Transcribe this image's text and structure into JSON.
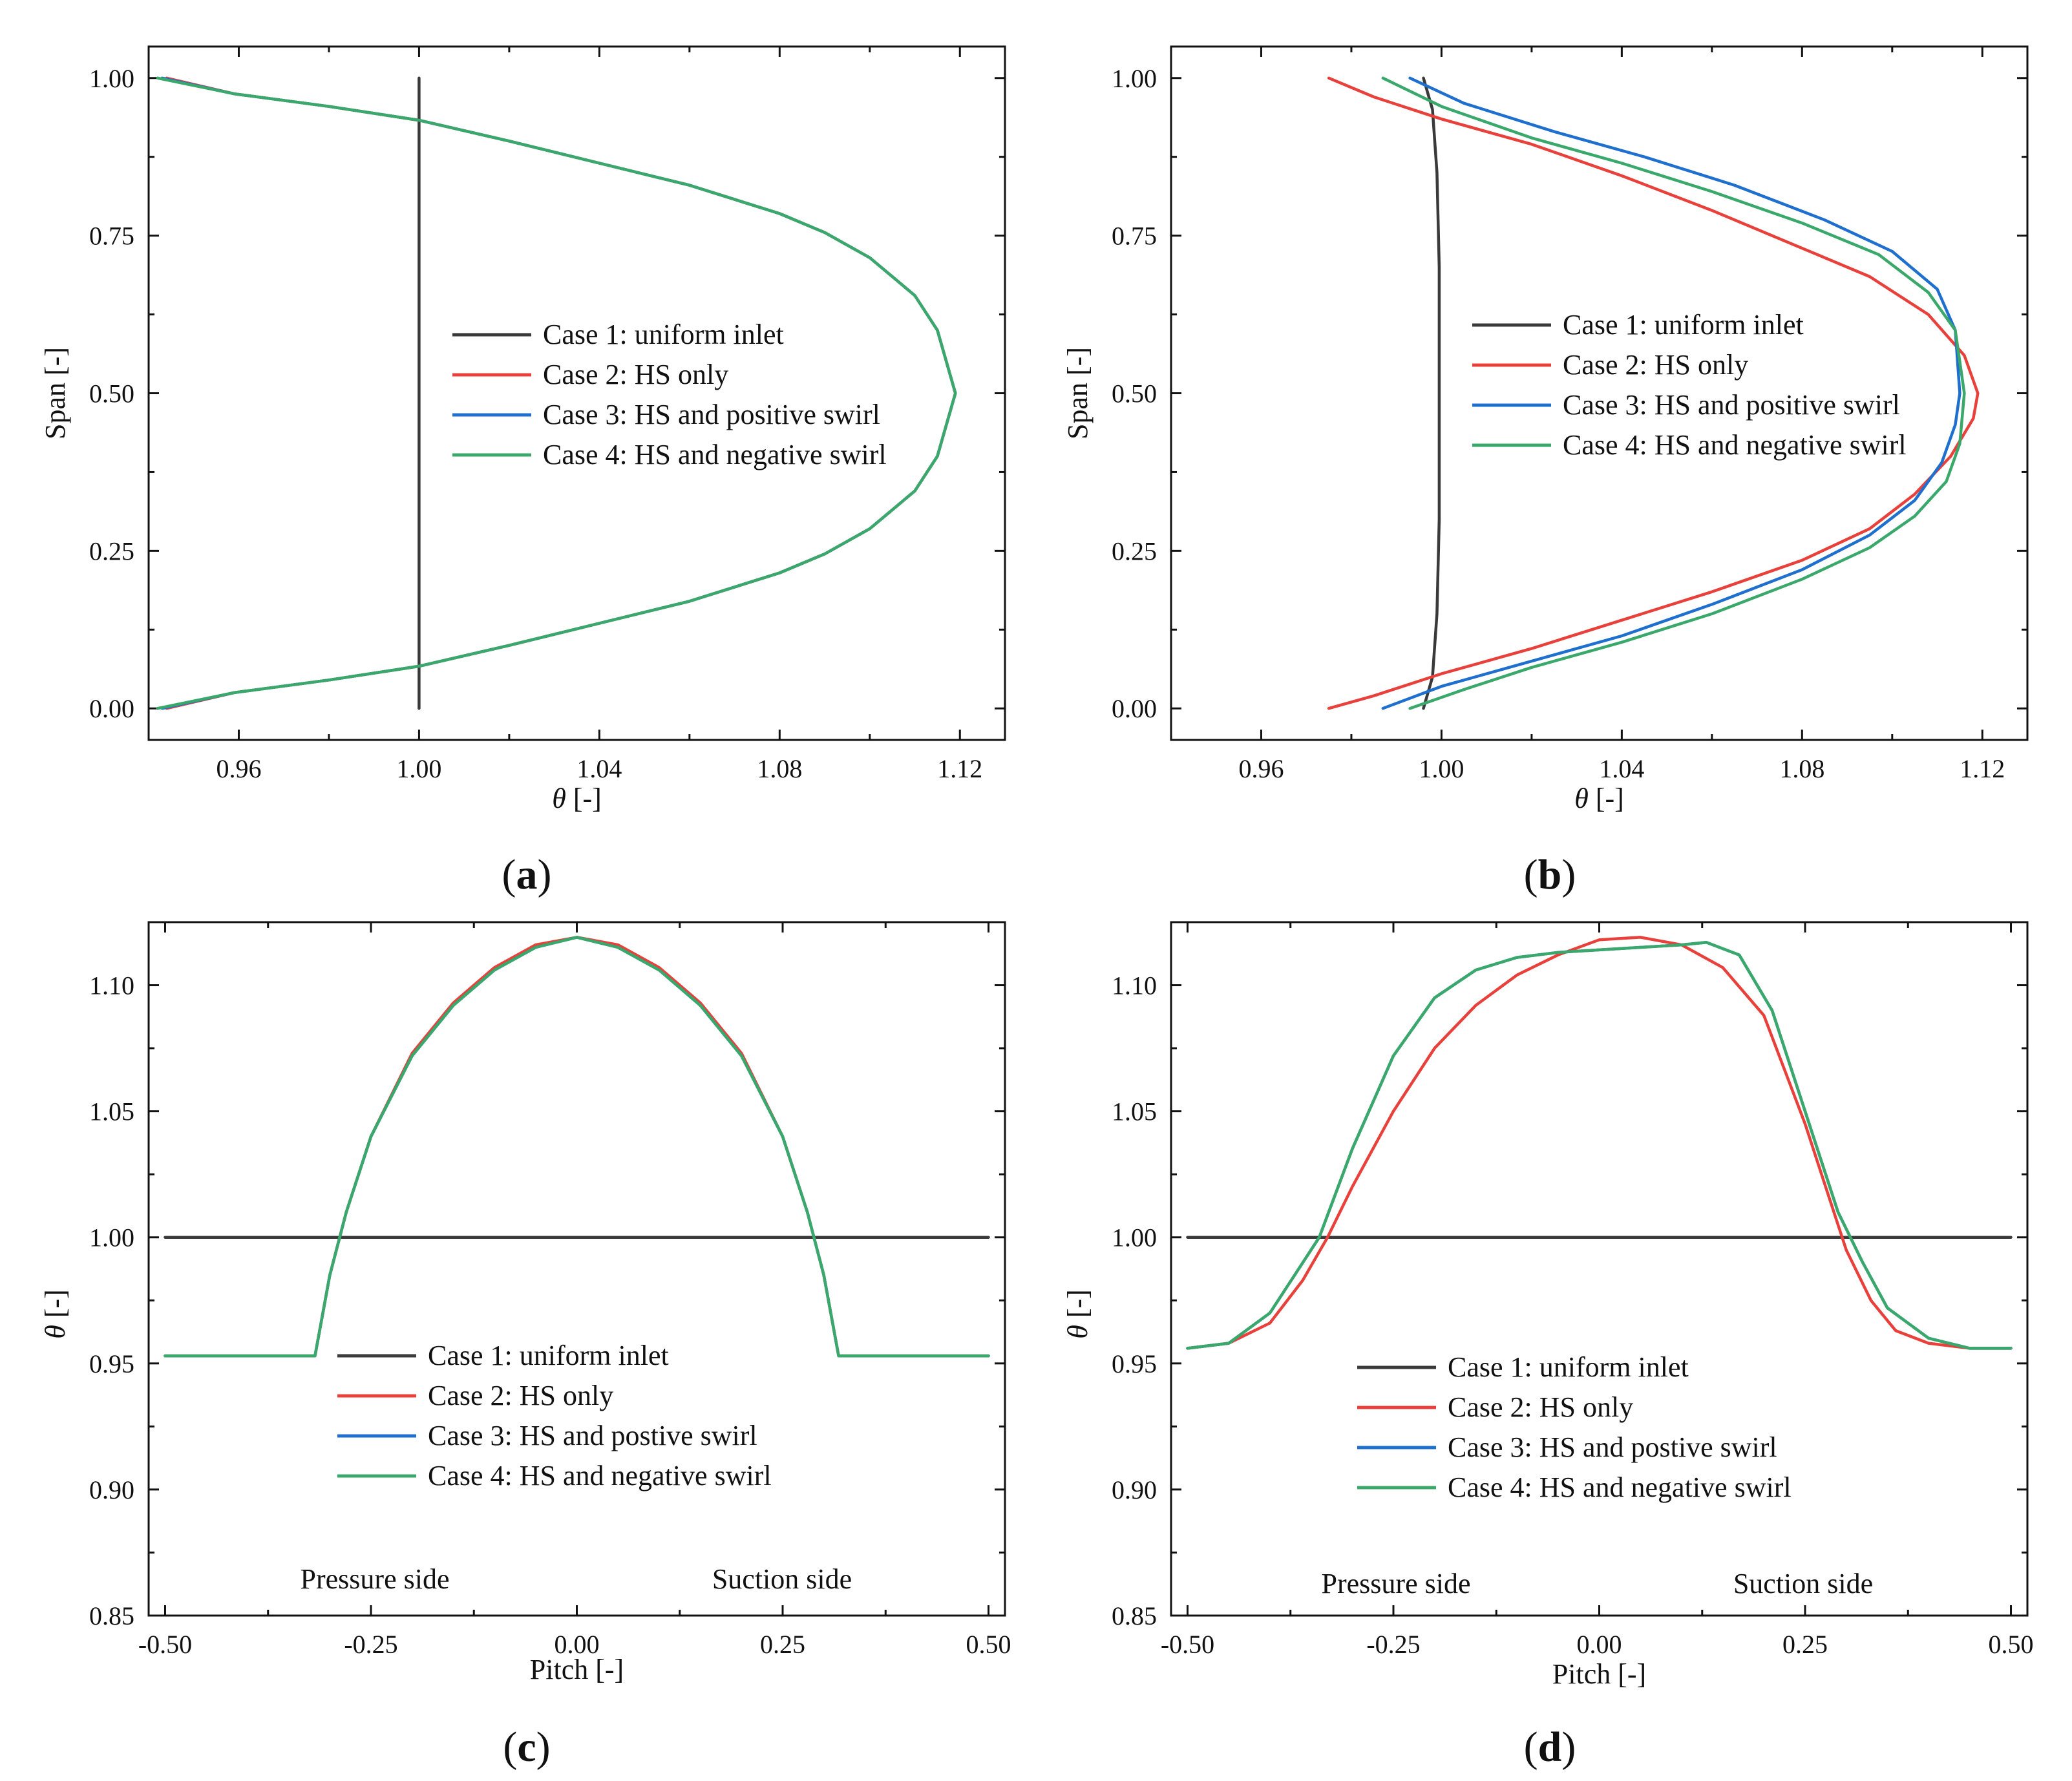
{
  "colors": {
    "case1": "#3a3a3a",
    "case2": "#e8413c",
    "case3": "#1f6fce",
    "case4": "#3aa86b",
    "axis": "#111111"
  },
  "chart_data": [
    {
      "id": "a",
      "label": "a",
      "type": "line",
      "orientation": "vertical",
      "xlabel_symbol": "θ",
      "xlabel_unit": " [-]",
      "ylabel": "Span [-]",
      "xlim": [
        0.94,
        1.13
      ],
      "ylim": [
        -0.05,
        1.05
      ],
      "xticks": [
        0.96,
        1.0,
        1.04,
        1.08,
        1.12
      ],
      "xtick_labels": [
        "0.96",
        "1.00",
        "1.04",
        "1.08",
        "1.12"
      ],
      "yticks": [
        0.0,
        0.25,
        0.5,
        0.75,
        1.0
      ],
      "ytick_labels": [
        "0.00",
        "0.25",
        "0.50",
        "0.75",
        "1.00"
      ],
      "legend": [
        "Case 1: uniform inlet",
        "Case 2: HS only",
        "Case 3: HS and positive swirl",
        "Case 4: HS and negative swirl"
      ],
      "legend_pos": "center-right",
      "annotations": [],
      "series": [
        {
          "name": "Case 1: uniform inlet",
          "color": "case1",
          "x": [
            1.0,
            1.0
          ],
          "y": [
            0.0,
            1.0
          ]
        },
        {
          "name": "Case 2: HS only",
          "color": "case2",
          "x": [
            0.944,
            0.959,
            0.98,
            1.0,
            1.02,
            1.04,
            1.06,
            1.08,
            1.09,
            1.1,
            1.11,
            1.115,
            1.119,
            1.115,
            1.11,
            1.1,
            1.09,
            1.08,
            1.06,
            1.04,
            1.02,
            1.0,
            0.98,
            0.959,
            0.944
          ],
          "y": [
            0.0,
            0.025,
            0.045,
            0.067,
            0.1,
            0.135,
            0.17,
            0.215,
            0.245,
            0.285,
            0.345,
            0.4,
            0.5,
            0.6,
            0.655,
            0.715,
            0.755,
            0.785,
            0.83,
            0.865,
            0.9,
            0.933,
            0.955,
            0.975,
            1.0
          ]
        },
        {
          "name": "Case 3: HS and positive swirl",
          "color": "case3",
          "x": [
            0.943,
            0.959,
            0.98,
            1.0,
            1.02,
            1.04,
            1.06,
            1.08,
            1.09,
            1.1,
            1.11,
            1.115,
            1.119,
            1.115,
            1.11,
            1.1,
            1.09,
            1.08,
            1.06,
            1.04,
            1.02,
            1.0,
            0.98,
            0.959,
            0.943
          ],
          "y": [
            0.0,
            0.025,
            0.045,
            0.067,
            0.1,
            0.135,
            0.17,
            0.215,
            0.245,
            0.285,
            0.345,
            0.4,
            0.5,
            0.6,
            0.655,
            0.715,
            0.755,
            0.785,
            0.83,
            0.865,
            0.9,
            0.933,
            0.955,
            0.975,
            1.0
          ]
        },
        {
          "name": "Case 4: HS and negative swirl",
          "color": "case4",
          "x": [
            0.942,
            0.959,
            0.98,
            1.0,
            1.02,
            1.04,
            1.06,
            1.08,
            1.09,
            1.1,
            1.11,
            1.115,
            1.119,
            1.115,
            1.11,
            1.1,
            1.09,
            1.08,
            1.06,
            1.04,
            1.02,
            1.0,
            0.98,
            0.959,
            0.942
          ],
          "y": [
            0.0,
            0.025,
            0.045,
            0.067,
            0.1,
            0.135,
            0.17,
            0.215,
            0.245,
            0.285,
            0.345,
            0.4,
            0.5,
            0.6,
            0.655,
            0.715,
            0.755,
            0.785,
            0.83,
            0.865,
            0.9,
            0.933,
            0.955,
            0.975,
            1.0
          ]
        }
      ]
    },
    {
      "id": "b",
      "label": "b",
      "type": "line",
      "orientation": "vertical",
      "xlabel_symbol": "θ",
      "xlabel_unit": " [-]",
      "ylabel": "Span [-]",
      "xlim": [
        0.94,
        1.13
      ],
      "ylim": [
        -0.05,
        1.05
      ],
      "xticks": [
        0.96,
        1.0,
        1.04,
        1.08,
        1.12
      ],
      "xtick_labels": [
        "0.96",
        "1.00",
        "1.04",
        "1.08",
        "1.12"
      ],
      "yticks": [
        0.0,
        0.25,
        0.5,
        0.75,
        1.0
      ],
      "ytick_labels": [
        "0.00",
        "0.25",
        "0.50",
        "0.75",
        "1.00"
      ],
      "legend": [
        "Case 1: uniform inlet",
        "Case 2: HS only",
        "Case 3: HS and positive swirl",
        "Case 4: HS and negative swirl"
      ],
      "legend_pos": "center-right",
      "annotations": [],
      "series": [
        {
          "name": "Case 1: uniform inlet",
          "color": "case1",
          "x": [
            0.996,
            0.998,
            0.999,
            0.9995,
            0.9995,
            0.9995,
            0.999,
            0.998,
            0.996
          ],
          "y": [
            0.0,
            0.05,
            0.15,
            0.3,
            0.5,
            0.7,
            0.85,
            0.95,
            1.0
          ]
        },
        {
          "name": "Case 2: HS only",
          "color": "case2",
          "x": [
            0.975,
            0.985,
            1.0,
            1.02,
            1.04,
            1.06,
            1.08,
            1.095,
            1.105,
            1.113,
            1.118,
            1.119,
            1.116,
            1.108,
            1.095,
            1.08,
            1.06,
            1.04,
            1.02,
            1.0,
            0.985,
            0.975
          ],
          "y": [
            0.0,
            0.02,
            0.055,
            0.095,
            0.14,
            0.185,
            0.235,
            0.285,
            0.34,
            0.4,
            0.46,
            0.5,
            0.56,
            0.625,
            0.685,
            0.73,
            0.79,
            0.845,
            0.895,
            0.935,
            0.97,
            1.0
          ]
        },
        {
          "name": "Case 3: HS and positive swirl",
          "color": "case3",
          "x": [
            0.987,
            1.0,
            1.02,
            1.04,
            1.06,
            1.08,
            1.095,
            1.105,
            1.111,
            1.114,
            1.115,
            1.114,
            1.11,
            1.1,
            1.085,
            1.065,
            1.045,
            1.025,
            1.005,
            0.993
          ],
          "y": [
            0.0,
            0.035,
            0.075,
            0.115,
            0.165,
            0.22,
            0.275,
            0.33,
            0.39,
            0.45,
            0.5,
            0.6,
            0.665,
            0.725,
            0.775,
            0.83,
            0.875,
            0.915,
            0.96,
            1.0
          ]
        },
        {
          "name": "Case 4: HS and negative swirl",
          "color": "case4",
          "x": [
            0.993,
            1.005,
            1.02,
            1.04,
            1.06,
            1.08,
            1.095,
            1.105,
            1.112,
            1.115,
            1.116,
            1.114,
            1.108,
            1.097,
            1.08,
            1.06,
            1.04,
            1.02,
            1.0,
            0.987
          ],
          "y": [
            0.0,
            0.03,
            0.065,
            0.105,
            0.15,
            0.205,
            0.255,
            0.305,
            0.36,
            0.42,
            0.5,
            0.6,
            0.66,
            0.72,
            0.77,
            0.82,
            0.865,
            0.905,
            0.955,
            1.0
          ]
        }
      ]
    },
    {
      "id": "c",
      "label": "c",
      "type": "line",
      "orientation": "horizontal",
      "xlabel": "Pitch [-]",
      "ylabel_symbol": "θ",
      "ylabel_unit": " [-]",
      "xlim": [
        -0.52,
        0.52
      ],
      "ylim": [
        0.85,
        1.125
      ],
      "xticks": [
        -0.5,
        -0.25,
        0.0,
        0.25,
        0.5
      ],
      "xtick_labels": [
        "-0.50",
        "-0.25",
        "0.00",
        "0.25",
        "0.50"
      ],
      "yticks": [
        0.85,
        0.9,
        0.95,
        1.0,
        1.05,
        1.1
      ],
      "ytick_labels": [
        "0.85",
        "0.90",
        "0.95",
        "1.00",
        "1.05",
        "1.10"
      ],
      "legend": [
        "Case 1: uniform inlet",
        "Case 2: HS only",
        "Case 3: HS and postive swirl",
        "Case 4: HS and negative swirl"
      ],
      "legend_pos": "bottom-center",
      "annotations": [
        "Pressure side",
        "Suction side"
      ],
      "series": [
        {
          "name": "Case 1: uniform inlet",
          "color": "case1",
          "x": [
            -0.5,
            0.5
          ],
          "y": [
            1.0,
            1.0
          ]
        },
        {
          "name": "Case 2: HS only",
          "color": "case2",
          "x": [
            -0.5,
            -0.318,
            -0.3,
            -0.28,
            -0.25,
            -0.2,
            -0.15,
            -0.1,
            -0.05,
            0.0,
            0.05,
            0.1,
            0.15,
            0.2,
            0.25,
            0.28,
            0.3,
            0.318,
            0.5
          ],
          "y": [
            0.953,
            0.953,
            0.985,
            1.01,
            1.04,
            1.073,
            1.093,
            1.107,
            1.116,
            1.119,
            1.116,
            1.107,
            1.093,
            1.073,
            1.04,
            1.01,
            0.985,
            0.953,
            0.953
          ]
        },
        {
          "name": "Case 3: HS and postive swirl",
          "color": "case3",
          "x": [
            -0.5,
            -0.318,
            -0.3,
            -0.28,
            -0.25,
            -0.2,
            -0.15,
            -0.1,
            -0.05,
            0.0,
            0.05,
            0.1,
            0.15,
            0.2,
            0.25,
            0.28,
            0.3,
            0.318,
            0.5
          ],
          "y": [
            0.953,
            0.953,
            0.985,
            1.01,
            1.04,
            1.072,
            1.092,
            1.106,
            1.115,
            1.119,
            1.115,
            1.106,
            1.092,
            1.072,
            1.04,
            1.01,
            0.985,
            0.953,
            0.953
          ]
        },
        {
          "name": "Case 4: HS and negative swirl",
          "color": "case4",
          "x": [
            -0.5,
            -0.318,
            -0.3,
            -0.28,
            -0.25,
            -0.2,
            -0.15,
            -0.1,
            -0.05,
            0.0,
            0.05,
            0.1,
            0.15,
            0.2,
            0.25,
            0.28,
            0.3,
            0.318,
            0.5
          ],
          "y": [
            0.953,
            0.953,
            0.985,
            1.01,
            1.04,
            1.072,
            1.092,
            1.106,
            1.115,
            1.119,
            1.115,
            1.106,
            1.092,
            1.072,
            1.04,
            1.01,
            0.985,
            0.953,
            0.953
          ]
        }
      ]
    },
    {
      "id": "d",
      "label": "d",
      "type": "line",
      "orientation": "horizontal",
      "xlabel": "Pitch [-]",
      "ylabel_symbol": "θ",
      "ylabel_unit": " [-]",
      "xlim": [
        -0.52,
        0.52
      ],
      "ylim": [
        0.85,
        1.125
      ],
      "xticks": [
        -0.5,
        -0.25,
        0.0,
        0.25,
        0.5
      ],
      "xtick_labels": [
        "-0.50",
        "-0.25",
        "0.00",
        "0.25",
        "0.50"
      ],
      "yticks": [
        0.85,
        0.9,
        0.95,
        1.0,
        1.05,
        1.1
      ],
      "ytick_labels": [
        "0.85",
        "0.90",
        "0.95",
        "1.00",
        "1.05",
        "1.10"
      ],
      "legend": [
        "Case 1: uniform inlet",
        "Case 2: HS only",
        "Case 3: HS and postive swirl",
        "Case 4: HS and negative swirl"
      ],
      "legend_pos": "bottom-center",
      "annotations": [
        "Pressure side",
        "Suction side"
      ],
      "series": [
        {
          "name": "Case 1: uniform inlet",
          "color": "case1",
          "x": [
            -0.5,
            0.5
          ],
          "y": [
            1.0,
            1.0
          ]
        },
        {
          "name": "Case 2: HS only",
          "color": "case2",
          "x": [
            -0.5,
            -0.45,
            -0.4,
            -0.36,
            -0.33,
            -0.3,
            -0.25,
            -0.2,
            -0.15,
            -0.1,
            -0.05,
            0.0,
            0.05,
            0.1,
            0.15,
            0.2,
            0.25,
            0.28,
            0.3,
            0.33,
            0.36,
            0.4,
            0.45,
            0.5
          ],
          "y": [
            0.956,
            0.958,
            0.966,
            0.983,
            1.0,
            1.02,
            1.05,
            1.075,
            1.092,
            1.104,
            1.112,
            1.118,
            1.119,
            1.116,
            1.107,
            1.088,
            1.045,
            1.015,
            0.995,
            0.975,
            0.963,
            0.958,
            0.956,
            0.956
          ]
        },
        {
          "name": "Case 3: HS and postive swirl",
          "color": "case3",
          "x": [
            -0.5,
            -0.45,
            -0.4,
            -0.37,
            -0.34,
            -0.3,
            -0.25,
            -0.2,
            -0.15,
            -0.1,
            -0.05,
            0.0,
            0.05,
            0.1,
            0.13,
            0.17,
            0.21,
            0.25,
            0.29,
            0.32,
            0.35,
            0.4,
            0.45,
            0.5
          ],
          "y": [
            0.956,
            0.958,
            0.97,
            0.985,
            1.0,
            1.035,
            1.072,
            1.095,
            1.106,
            1.111,
            1.113,
            1.114,
            1.115,
            1.116,
            1.117,
            1.112,
            1.09,
            1.05,
            1.01,
            0.99,
            0.972,
            0.96,
            0.956,
            0.956
          ]
        },
        {
          "name": "Case 4: HS and negative swirl",
          "color": "case4",
          "x": [
            -0.5,
            -0.45,
            -0.4,
            -0.37,
            -0.34,
            -0.3,
            -0.25,
            -0.2,
            -0.15,
            -0.1,
            -0.05,
            0.0,
            0.05,
            0.1,
            0.13,
            0.17,
            0.21,
            0.25,
            0.29,
            0.32,
            0.35,
            0.4,
            0.45,
            0.5
          ],
          "y": [
            0.956,
            0.958,
            0.97,
            0.985,
            1.0,
            1.035,
            1.072,
            1.095,
            1.106,
            1.111,
            1.113,
            1.114,
            1.115,
            1.116,
            1.117,
            1.112,
            1.09,
            1.05,
            1.01,
            0.99,
            0.972,
            0.96,
            0.956,
            0.956
          ]
        }
      ]
    }
  ]
}
